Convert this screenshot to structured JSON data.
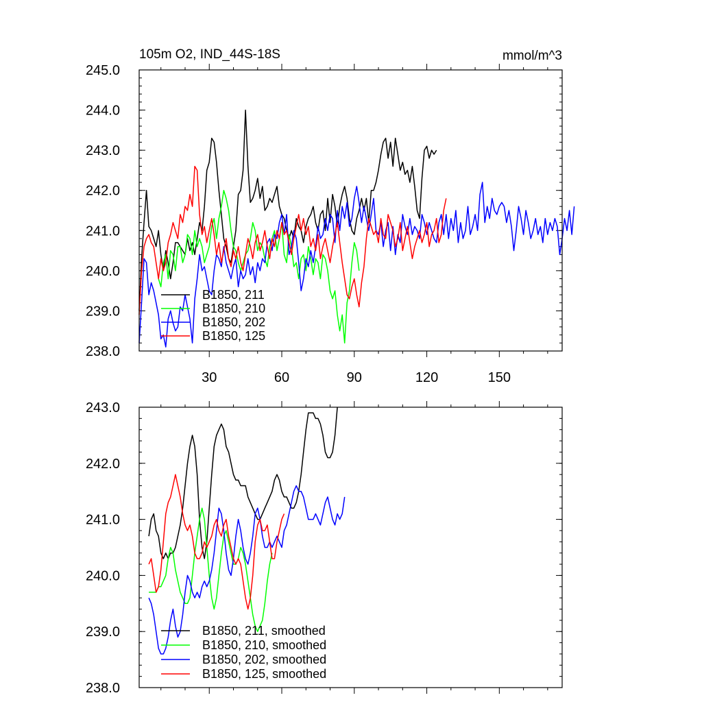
{
  "chart_data": [
    {
      "type": "line",
      "title": "105m O2, IND_44S-18S",
      "units": "mmol/m^3",
      "xlabel": "",
      "ylabel": "",
      "xlim": [
        1,
        176
      ],
      "ylim": [
        238.0,
        245.0
      ],
      "xticks": [
        30,
        60,
        90,
        120,
        150
      ],
      "yticks": [
        "238.0",
        "239.0",
        "240.0",
        "241.0",
        "242.0",
        "243.0",
        "244.0",
        "245.0"
      ],
      "legend_position": "bottom-left",
      "series": [
        {
          "name": "B1850, 211",
          "color": "#000000",
          "x_start": 1,
          "values": [
            239.0,
            240.3,
            241.2,
            242.0,
            241.1,
            241.0,
            240.8,
            240.6,
            241.0,
            240.4,
            240.0,
            240.5,
            240.2,
            239.8,
            240.2,
            240.7,
            240.7,
            240.6,
            240.5,
            240.4,
            240.8,
            240.5,
            240.7,
            240.4,
            240.8,
            241.2,
            241.0,
            241.6,
            242.5,
            242.7,
            243.3,
            243.2,
            242.7,
            242.0,
            241.4,
            240.8,
            240.6,
            240.3,
            240.2,
            240.6,
            241.0,
            241.9,
            242.0,
            242.5,
            244.0,
            242.6,
            241.7,
            241.8,
            242.0,
            242.3,
            241.8,
            242.1,
            241.5,
            241.6,
            241.8,
            241.7,
            241.9,
            242.1,
            241.6,
            241.4,
            241.3,
            241.0,
            240.8,
            241.0,
            240.8,
            241.3,
            241.1,
            241.0,
            240.7,
            241.1,
            241.3,
            241.4,
            241.6,
            241.2,
            241.0,
            241.4,
            241.5,
            241.0,
            241.8,
            241.2,
            241.9,
            241.6,
            241.1,
            241.6,
            241.9,
            242.1,
            241.8,
            241.3,
            241.0,
            240.9,
            241.3,
            241.5,
            241.8,
            241.5,
            241.8,
            241.2,
            242.0,
            242.0,
            242.2,
            242.5,
            242.9,
            243.2,
            243.3,
            242.8,
            243.2,
            242.6,
            243.3,
            242.9,
            242.5,
            242.7,
            242.4,
            242.5,
            242.2,
            242.6,
            242.1,
            241.5,
            241.3,
            242.3,
            243.0,
            243.1,
            242.8,
            243.0,
            242.9,
            243.0
          ]
        },
        {
          "name": "B1850, 210",
          "color": "#00ff00",
          "x_start": 9,
          "values": [
            239.8,
            239.6,
            240.2,
            240.4,
            239.8,
            240.5,
            240.4,
            240.0,
            240.6,
            240.6,
            240.2,
            240.4,
            240.9,
            240.8,
            240.4,
            241.0,
            240.6,
            240.8,
            240.6,
            240.2,
            240.4,
            240.6,
            241.1,
            241.3,
            240.8,
            241.3,
            241.6,
            242.0,
            241.8,
            241.5,
            241.0,
            240.6,
            240.5,
            240.2,
            240.0,
            240.2,
            240.4,
            240.5,
            240.8,
            241.2,
            241.0,
            240.5,
            240.7,
            240.6,
            240.3,
            240.1,
            240.6,
            240.8,
            241.0,
            240.5,
            240.8,
            241.2,
            240.4,
            240.2,
            240.9,
            240.6,
            240.1,
            240.2,
            239.8,
            240.3,
            240.4,
            240.0,
            240.6,
            240.3,
            239.9,
            240.3,
            240.2,
            239.8,
            240.4,
            240.3,
            240.0,
            239.5,
            239.3,
            239.5,
            238.9,
            238.5,
            238.9,
            238.2,
            239.2,
            239.5,
            240.2,
            240.7,
            240.5,
            240.0
          ]
        },
        {
          "name": "B1850, 202",
          "color": "#0000ff",
          "x_start": 1,
          "values": [
            238.2,
            239.2,
            240.3,
            240.2,
            239.4,
            239.7,
            239.5,
            239.2,
            238.9,
            238.3,
            238.4,
            238.1,
            238.8,
            239.0,
            238.7,
            238.5,
            238.6,
            239.1,
            239.0,
            239.4,
            239.1,
            238.8,
            238.2,
            239.3,
            239.8,
            240.4,
            240.0,
            240.1,
            239.8,
            239.5,
            239.4,
            240.0,
            240.4,
            240.3,
            240.1,
            240.6,
            240.2,
            240.0,
            239.8,
            240.1,
            240.3,
            239.6,
            240.0,
            239.8,
            239.9,
            240.3,
            239.9,
            240.1,
            239.7,
            240.2,
            240.0,
            240.3,
            240.2,
            240.7,
            240.8,
            240.5,
            240.9,
            240.8,
            241.2,
            241.4,
            240.9,
            241.4,
            240.4,
            240.6,
            241.0,
            240.8,
            240.2,
            239.5,
            239.8,
            240.3,
            240.1,
            240.5,
            240.2,
            240.6,
            241.1,
            240.8,
            240.9,
            241.3,
            241.0,
            241.4,
            241.3,
            240.7,
            241.5,
            241.0,
            241.6,
            241.3,
            241.7,
            241.1,
            241.3,
            241.8,
            242.1,
            241.7,
            241.2,
            241.6,
            241.3,
            241.0,
            241.4,
            241.8,
            241.0,
            240.9,
            241.2,
            240.6,
            241.0,
            241.2,
            240.5,
            241.1,
            240.4,
            240.9,
            240.7,
            241.4,
            241.1,
            240.9,
            241.3,
            240.9,
            241.1,
            241.0,
            240.8,
            241.4,
            241.2,
            240.9,
            241.2,
            241.0,
            240.8,
            240.7,
            241.2,
            241.4,
            240.9,
            241.4,
            240.8,
            241.3,
            241.0,
            241.5,
            240.7,
            241.2,
            240.8,
            241.0,
            241.6,
            240.9,
            241.1,
            241.4,
            241.0,
            241.9,
            242.2,
            241.2,
            241.6,
            241.3,
            241.8,
            241.5,
            241.4,
            241.6,
            241.7,
            241.6,
            241.2,
            241.5,
            241.1,
            240.5,
            241.0,
            241.6,
            241.3,
            240.9,
            241.5,
            241.2,
            240.8,
            241.0,
            241.3,
            240.9,
            241.1,
            240.7,
            241.3,
            240.9,
            241.2,
            241.0,
            241.3,
            241.1,
            240.4,
            240.8,
            241.3,
            241.0,
            241.5,
            240.9,
            241.6
          ]
        },
        {
          "name": "B1850, 125",
          "color": "#ff0000",
          "x_start": 1,
          "values": [
            238.9,
            240.0,
            240.6,
            240.8,
            240.9,
            240.7,
            240.6,
            240.2,
            239.8,
            240.3,
            240.0,
            240.2,
            240.7,
            240.9,
            241.2,
            241.0,
            240.8,
            241.4,
            241.2,
            241.6,
            241.5,
            241.9,
            241.6,
            242.6,
            242.5,
            241.4,
            240.9,
            241.1,
            240.7,
            241.0,
            241.3,
            240.9,
            240.4,
            240.7,
            240.2,
            240.5,
            240.8,
            240.3,
            240.1,
            240.5,
            240.3,
            240.6,
            240.2,
            240.0,
            240.4,
            240.8,
            240.6,
            240.3,
            240.7,
            240.9,
            240.5,
            240.7,
            241.0,
            240.6,
            240.3,
            240.8,
            240.6,
            241.0,
            240.8,
            241.2,
            240.9,
            241.0,
            240.7,
            240.4,
            240.8,
            241.1,
            241.4,
            241.0,
            241.3,
            240.9,
            241.1,
            240.6,
            240.8,
            240.5,
            240.9,
            240.3,
            240.6,
            240.8,
            240.5,
            240.2,
            240.6,
            240.9,
            241.2,
            240.7,
            240.2,
            239.8,
            239.4,
            239.3,
            239.6,
            239.8,
            239.4,
            239.1,
            239.7,
            240.1,
            240.8,
            241.3,
            241.1,
            240.9,
            241.0,
            240.7,
            241.3,
            240.9,
            240.8,
            241.4,
            241.2,
            241.0,
            240.6,
            240.8,
            241.2,
            240.5,
            240.8,
            241.1,
            240.7,
            240.3,
            240.6,
            240.8,
            241.0,
            240.7,
            240.9,
            241.2,
            240.6,
            240.9,
            241.0,
            241.3,
            240.7,
            240.9,
            241.5,
            241.8
          ]
        }
      ]
    },
    {
      "type": "line",
      "title": "",
      "xlabel": "",
      "ylabel": "",
      "xlim": [
        1,
        176
      ],
      "ylim": [
        238.0,
        243.0
      ],
      "yticks": [
        "238.0",
        "239.0",
        "240.0",
        "241.0",
        "242.0",
        "243.0"
      ],
      "legend_position": "bottom-left",
      "series": [
        {
          "name": "B1850, 211, smoothed",
          "color": "#000000",
          "x_start": 5,
          "values": [
            240.7,
            241.0,
            241.1,
            240.8,
            240.7,
            240.4,
            240.3,
            240.4,
            240.3,
            240.4,
            240.4,
            240.5,
            240.7,
            240.9,
            241.2,
            241.6,
            242.0,
            242.3,
            242.5,
            242.3,
            241.8,
            241.0,
            240.5,
            240.3,
            240.6,
            241.2,
            241.8,
            242.3,
            242.5,
            242.6,
            242.7,
            242.6,
            242.3,
            242.2,
            242.0,
            241.8,
            241.7,
            241.7,
            241.6,
            241.6,
            241.6,
            241.4,
            241.3,
            241.2,
            241.1,
            241.0,
            241.0,
            241.1,
            241.2,
            241.3,
            241.4,
            241.5,
            241.7,
            241.8,
            241.7,
            241.5,
            241.4,
            241.4,
            241.3,
            241.2,
            241.2,
            241.3,
            241.5,
            241.8,
            242.2,
            242.6,
            242.9,
            242.9,
            242.9,
            242.8,
            242.8,
            242.7,
            242.5,
            242.2,
            242.1,
            242.1,
            242.2,
            242.5,
            243.0
          ]
        },
        {
          "name": "B1850, 210, smoothed",
          "color": "#00ff00",
          "x_start": 5,
          "values": [
            239.7,
            239.7,
            239.7,
            239.7,
            239.8,
            239.8,
            239.9,
            240.0,
            240.3,
            240.5,
            240.4,
            240.1,
            239.9,
            239.7,
            239.6,
            239.5,
            239.5,
            239.6,
            240.0,
            240.4,
            240.7,
            241.0,
            241.2,
            241.0,
            240.5,
            240.0,
            239.6,
            239.4,
            239.6,
            240.0,
            240.4,
            240.7,
            240.8,
            240.6,
            240.4,
            240.2,
            240.2,
            240.3,
            240.5,
            240.4,
            240.2,
            239.9,
            239.6,
            239.3,
            239.1,
            239.0,
            239.1,
            239.2,
            239.5,
            239.9,
            240.2,
            240.4
          ]
        },
        {
          "name": "B1850, 202, smoothed",
          "color": "#0000ff",
          "x_start": 5,
          "values": [
            239.6,
            239.5,
            239.3,
            239.0,
            238.7,
            238.6,
            238.6,
            238.7,
            238.9,
            239.2,
            239.4,
            239.1,
            238.9,
            239.0,
            239.3,
            239.7,
            240.0,
            239.9,
            239.7,
            239.6,
            239.7,
            239.6,
            239.8,
            239.9,
            239.8,
            239.9,
            240.1,
            240.4,
            240.8,
            241.2,
            241.1,
            240.8,
            240.4,
            240.1,
            240.0,
            240.3,
            240.7,
            241.0,
            240.8,
            240.5,
            240.3,
            240.2,
            240.4,
            240.7,
            241.1,
            241.2,
            241.0,
            240.7,
            240.5,
            240.5,
            240.6,
            240.5,
            240.6,
            240.7,
            240.6,
            240.5,
            240.8,
            240.9,
            241.1,
            241.3,
            241.5,
            241.6,
            241.5,
            241.5,
            241.4,
            241.2,
            241.0,
            241.0,
            241.0,
            241.1,
            241.0,
            240.9,
            241.1,
            241.3,
            241.4,
            241.2,
            241.0,
            240.9,
            241.1,
            241.0,
            241.1,
            241.4
          ]
        },
        {
          "name": "B1850, 125, smoothed",
          "color": "#ff0000",
          "x_start": 5,
          "values": [
            240.2,
            240.3,
            240.0,
            239.7,
            239.8,
            240.1,
            240.6,
            241.1,
            241.3,
            241.4,
            241.6,
            241.8,
            241.6,
            241.4,
            241.1,
            240.9,
            240.8,
            240.9,
            240.7,
            240.4,
            240.3,
            240.3,
            240.4,
            240.6,
            240.5,
            240.6,
            240.7,
            240.9,
            241.0,
            240.8,
            240.7,
            240.9,
            241.0,
            240.7,
            240.5,
            240.3,
            240.2,
            240.3,
            240.2,
            239.9,
            239.6,
            239.4,
            239.6,
            240.0,
            240.6,
            240.9,
            241.0,
            240.8,
            240.8,
            240.9,
            240.6,
            240.3,
            240.3,
            240.6,
            240.8,
            241.0,
            241.1
          ]
        }
      ]
    }
  ]
}
